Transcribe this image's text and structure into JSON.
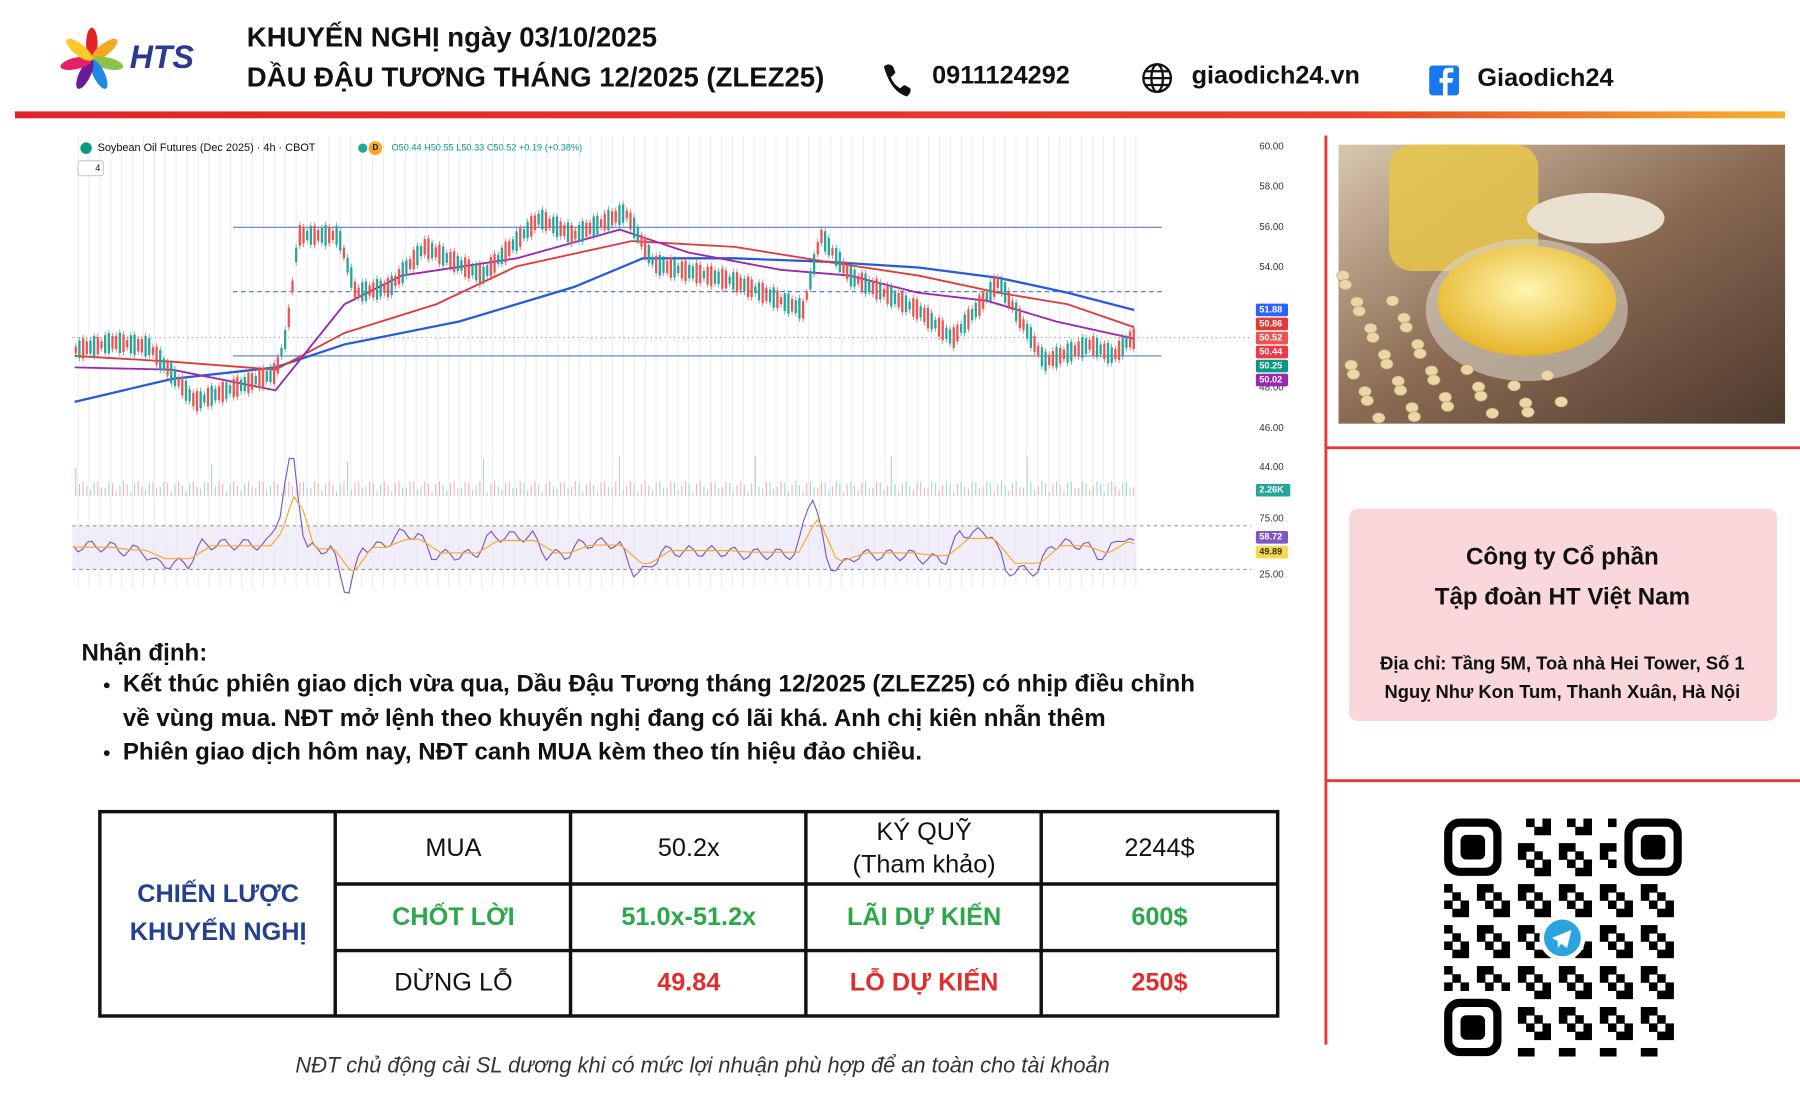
{
  "header": {
    "logo_text": "HTS",
    "title_line1": "KHUYẾN NGHỊ ngày 03/10/2025",
    "title_line2": "DẦU ĐẬU TƯƠNG THÁNG 12/2025 (ZLEZ25)",
    "phone": "0911124292",
    "website": "giaodich24.vn",
    "facebook": "Giaodich24"
  },
  "chart": {
    "title": "Soybean Oil Futures (Dec 2025) · 4h · CBOT",
    "badge": "D",
    "ohlc": "O50.44 H50.55 L50.33 C50.52 +0.19 (+0.38%)",
    "indicators": "4",
    "y_labels": [
      "60.00",
      "58.00",
      "56.00",
      "54.00",
      "48.00",
      "46.00",
      "44.00"
    ],
    "price_tags": [
      "51.88",
      "50.86",
      "50.52",
      "50.44",
      "50.25",
      "50.02"
    ],
    "volume_tag": "2.26K",
    "rsi_labels": [
      "75.00",
      "25.00"
    ],
    "rsi_tags": [
      "58.72",
      "49.89"
    ]
  },
  "analysis": {
    "heading": "Nhận định:",
    "bullets": [
      [
        "Kết thúc phiên giao dịch vừa qua, Dầu Đậu Tương tháng 12/2025 (ZLEZ25) có nhịp điều chỉnh",
        "về vùng mua. NĐT mở lệnh theo khuyến nghị đang có lãi khá. Anh chị kiên nhẫn thêm"
      ],
      [
        "Phiên giao dịch hôm nay, NĐT canh MUA kèm theo tín hiệu đảo chiều."
      ]
    ]
  },
  "table": {
    "strategy_label": [
      "CHIẾN LƯỢC",
      "KHUYẾN NGHỊ"
    ],
    "rows": [
      [
        "MUA",
        "50.2x",
        [
          "KÝ QUỸ",
          "(Tham khảo)"
        ],
        "2244$"
      ],
      [
        "CHỐT LỜI",
        "51.0x-51.2x",
        "LÃI DỰ KIẾN",
        "600$"
      ],
      [
        "DỪNG LỖ",
        "49.84",
        "LỖ DỰ KIẾN",
        "250$"
      ]
    ]
  },
  "footer_note": "NĐT chủ động cài SL dương khi có mức lợi nhuận phù hợp để an toàn cho tài khoản",
  "company": {
    "name": [
      "Công ty Cổ phần",
      "Tập đoàn HT Việt Nam"
    ],
    "address": [
      "Địa chỉ: Tầng 5M, Toà nhà Hei Tower, Số 1",
      "Nguỵ Như Kon Tum, Thanh Xuân, Hà Nội"
    ]
  }
}
